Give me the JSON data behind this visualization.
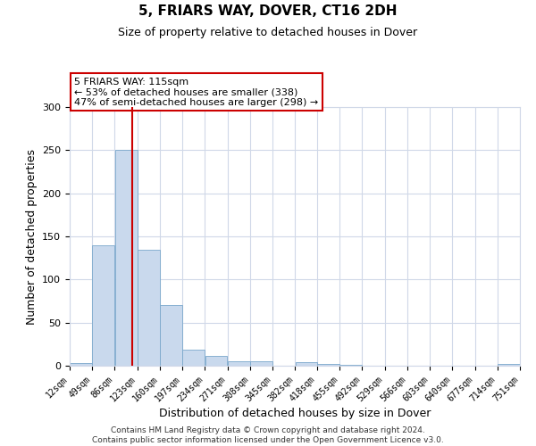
{
  "title": "5, FRIARS WAY, DOVER, CT16 2DH",
  "subtitle": "Size of property relative to detached houses in Dover",
  "xlabel": "Distribution of detached houses by size in Dover",
  "ylabel": "Number of detached properties",
  "bar_color": "#c9d9ed",
  "bar_edge_color": "#7aa8cc",
  "bin_edges": [
    12,
    49,
    86,
    123,
    160,
    197,
    234,
    271,
    308,
    345,
    382,
    418,
    455,
    492,
    529,
    566,
    603,
    640,
    677,
    714,
    751
  ],
  "bar_heights": [
    3,
    140,
    250,
    135,
    70,
    19,
    11,
    5,
    5,
    0,
    4,
    2,
    1,
    0,
    0,
    0,
    0,
    0,
    0,
    2
  ],
  "tick_labels": [
    "12sqm",
    "49sqm",
    "86sqm",
    "123sqm",
    "160sqm",
    "197sqm",
    "234sqm",
    "271sqm",
    "308sqm",
    "345sqm",
    "382sqm",
    "418sqm",
    "455sqm",
    "492sqm",
    "529sqm",
    "566sqm",
    "603sqm",
    "640sqm",
    "677sqm",
    "714sqm",
    "751sqm"
  ],
  "property_size": 115,
  "vline_color": "#cc0000",
  "annotation_box_edge": "#cc0000",
  "annotation_text_line1": "5 FRIARS WAY: 115sqm",
  "annotation_text_line2": "← 53% of detached houses are smaller (338)",
  "annotation_text_line3": "47% of semi-detached houses are larger (298) →",
  "ylim": [
    0,
    300
  ],
  "yticks": [
    0,
    50,
    100,
    150,
    200,
    250,
    300
  ],
  "footer_line1": "Contains HM Land Registry data © Crown copyright and database right 2024.",
  "footer_line2": "Contains public sector information licensed under the Open Government Licence v3.0.",
  "background_color": "#ffffff",
  "grid_color": "#d0d8e8",
  "title_fontsize": 11,
  "subtitle_fontsize": 9,
  "xlabel_fontsize": 9,
  "ylabel_fontsize": 9,
  "tick_fontsize": 7,
  "footer_fontsize": 6.5
}
